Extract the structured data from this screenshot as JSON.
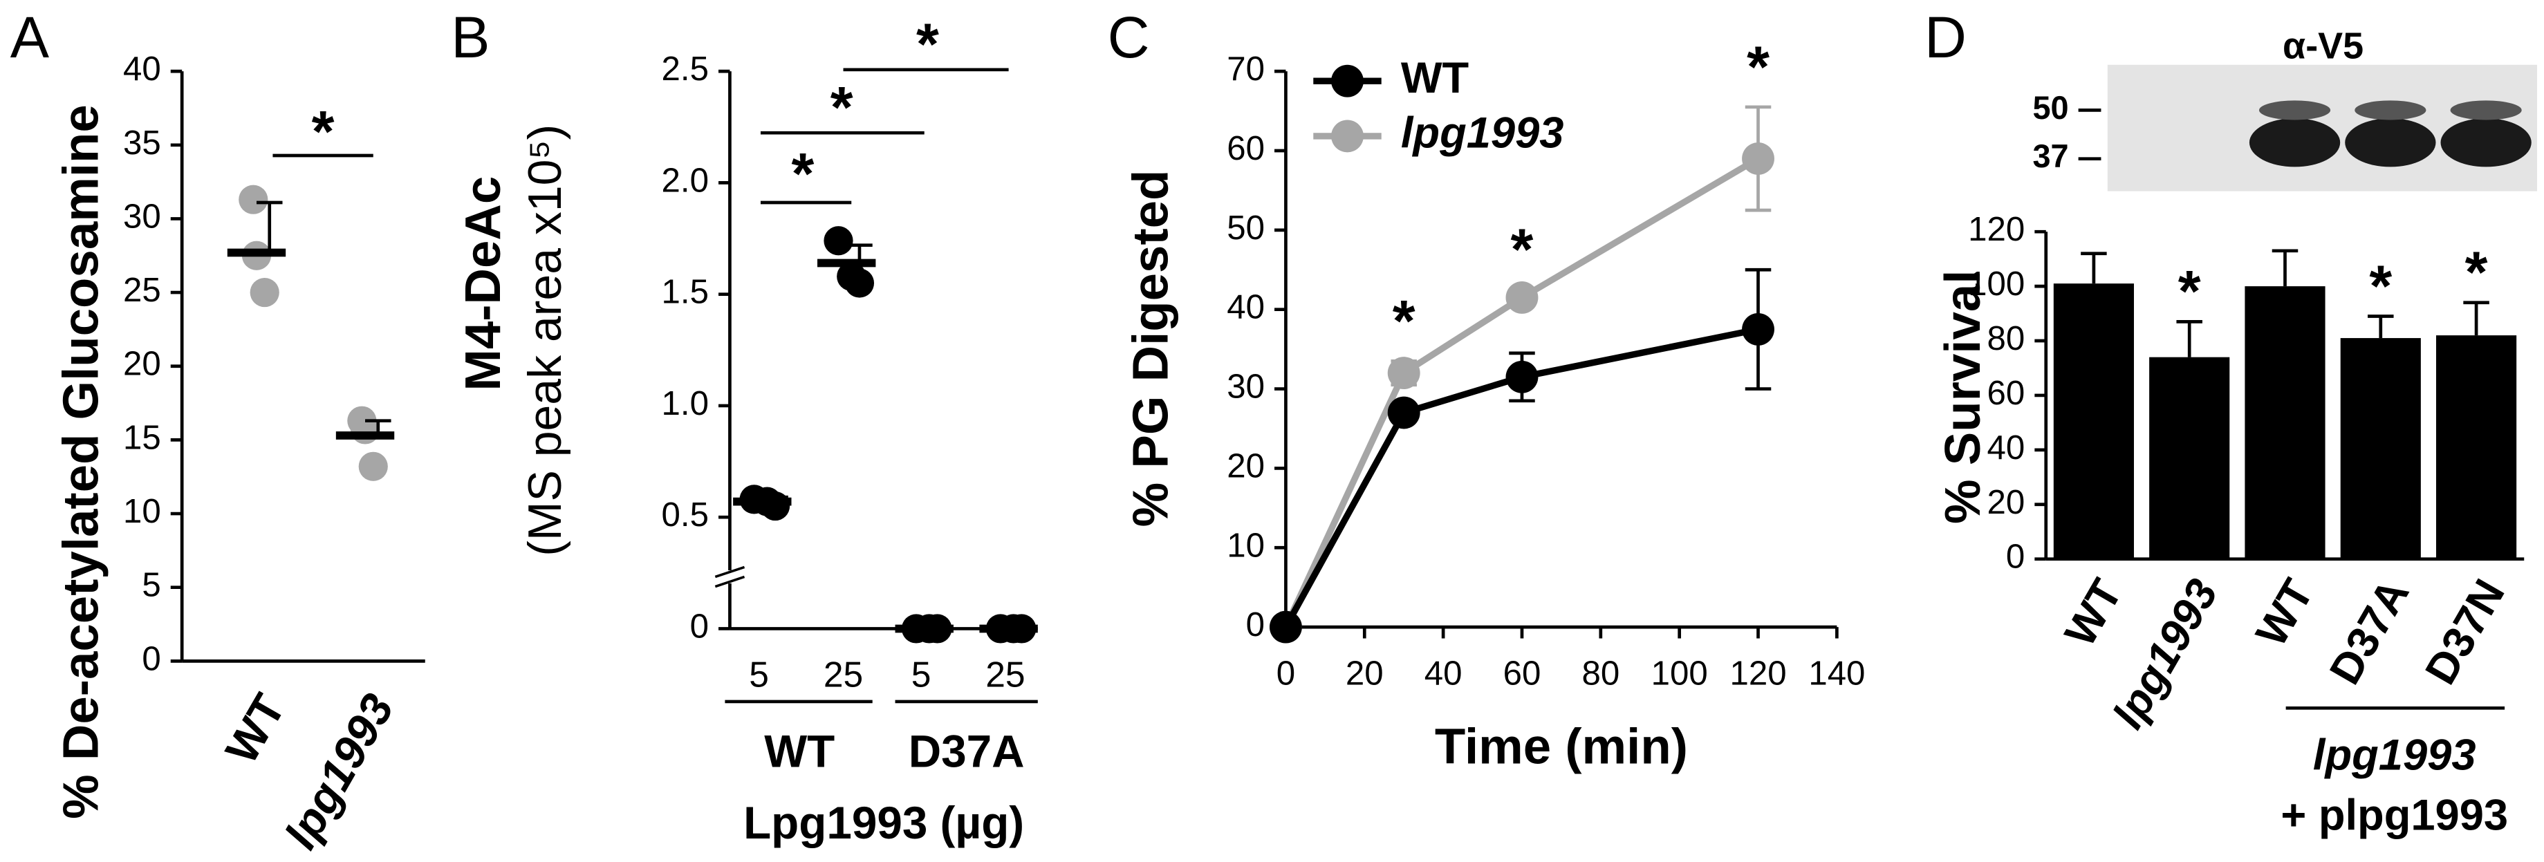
{
  "chart_data": [
    {
      "type": "dot",
      "panel": "A",
      "ylabel": "% De-acetylated Glucosamine",
      "categories": [
        "WT",
        "lpg1993"
      ],
      "points": [
        [
          31.3,
          27.5,
          25
        ],
        [
          16.3,
          15.7,
          13.2
        ]
      ],
      "means": [
        27.7,
        15.3
      ],
      "errors": [
        3.4,
        1
      ],
      "color": "#a6a6a6",
      "ylim": [
        0,
        40
      ],
      "yticks": [
        0,
        5,
        10,
        15,
        20,
        25,
        30,
        35,
        40
      ],
      "annotations": [
        "*"
      ]
    },
    {
      "type": "dot",
      "panel": "B",
      "ylabel": "M4-DeAc",
      "ylabel2": "(MS peak area x10⁵)",
      "xlabel": "Lpg1993 (µg)",
      "categories": [
        "5",
        "25",
        "5",
        "25"
      ],
      "groups": [
        "WT",
        "D37A"
      ],
      "points": [
        [
          0.58,
          0.57,
          0.55
        ],
        [
          1.74,
          1.58,
          1.55
        ],
        [
          0,
          0,
          0
        ],
        [
          0,
          0,
          0
        ]
      ],
      "means": [
        0.57,
        1.64,
        0,
        0
      ],
      "errors": [
        0.02,
        0.08,
        0,
        0
      ],
      "color": "#000000",
      "ylim": [
        0,
        2.5
      ],
      "yticks": [
        0,
        0.5,
        {
          "value": 1,
          "label": "1.0"
        },
        1.5,
        {
          "value": 2,
          "label": "2.0"
        },
        2.5
      ],
      "annotations": [
        "*",
        "*",
        "*"
      ]
    },
    {
      "type": "line",
      "panel": "C",
      "ylabel": "% PG Digested",
      "xlabel": "Time (min)",
      "x": [
        0,
        30,
        60,
        120
      ],
      "series": [
        {
          "name": "WT",
          "color": "#000000",
          "values": [
            0,
            27,
            31.5,
            37.5
          ],
          "errors": [
            0,
            1,
            3,
            7.5
          ]
        },
        {
          "name": "lpg1993",
          "color": "#a6a6a6",
          "values": [
            0,
            32,
            41.5,
            59
          ],
          "errors": [
            0,
            1.5,
            1,
            6.5
          ]
        }
      ],
      "xlim": [
        0,
        140
      ],
      "xticks": [
        0,
        20,
        40,
        60,
        80,
        100,
        120,
        140
      ],
      "ylim": [
        0,
        70
      ],
      "yticks": [
        0,
        10,
        20,
        30,
        40,
        50,
        60,
        70
      ],
      "legend": "upper left",
      "annotations": [
        "*",
        "*",
        "*"
      ]
    },
    {
      "type": "bar",
      "panel": "D",
      "ylabel": "% Survival",
      "blot_title": "α-V5",
      "blot_markers": [
        50,
        37
      ],
      "categories": [
        "WT",
        "lpg1993",
        "WT",
        "D37A",
        "D37N"
      ],
      "values": [
        101,
        74,
        100,
        81,
        82
      ],
      "errors": [
        11,
        13,
        13,
        8,
        12
      ],
      "color": "#000000",
      "ylim": [
        0,
        120
      ],
      "yticks": [
        0,
        20,
        40,
        60,
        80,
        100,
        120
      ],
      "group_label": "lpg1993",
      "group_sublabel": "+ plpg1993",
      "annotations": [
        "*",
        "*",
        "*"
      ]
    }
  ]
}
